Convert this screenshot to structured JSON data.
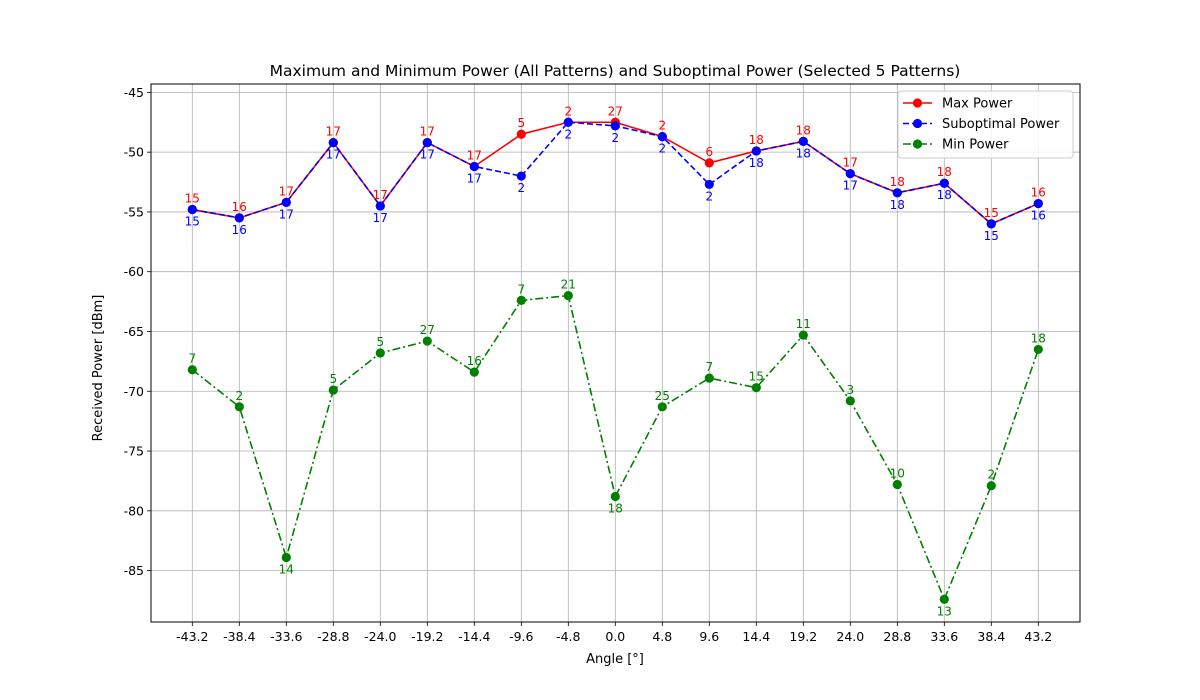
{
  "chart_data": {
    "type": "line",
    "title": "Maximum and Minimum Power (All Patterns) and Suboptimal Power (Selected 5 Patterns)",
    "xlabel": "Angle [°]",
    "ylabel": "Received Power [dBm]",
    "categories": [
      "-43.2",
      "-38.4",
      "-33.6",
      "-28.8",
      "-24.0",
      "-19.2",
      "-14.4",
      "-9.6",
      "-4.8",
      "0.0",
      "4.8",
      "9.6",
      "14.4",
      "19.2",
      "24.0",
      "28.8",
      "33.6",
      "38.4",
      "43.2"
    ],
    "yticks": [
      "-45",
      "-50",
      "-55",
      "-60",
      "-65",
      "-70",
      "-75",
      "-80",
      "-85"
    ],
    "ylim": [
      -89.3,
      -44.3
    ],
    "grid": true,
    "legend_position": "top-right",
    "series": [
      {
        "name": "Max Power",
        "color": "#ff0000",
        "line_style": "solid",
        "values": [
          -54.8,
          -55.5,
          -54.2,
          -49.2,
          -54.5,
          -49.2,
          -51.2,
          -48.5,
          -47.5,
          -47.5,
          -48.7,
          -50.9,
          -49.9,
          -49.1,
          -51.8,
          -53.4,
          -52.6,
          -56.0,
          -54.3
        ],
        "labels": [
          "15",
          "16",
          "17",
          "17",
          "17",
          "17",
          "17",
          "5",
          "2",
          "27",
          "2",
          "6",
          "18",
          "18",
          "17",
          "18",
          "18",
          "15",
          "16"
        ],
        "label_position": "above"
      },
      {
        "name": "Suboptimal Power",
        "color": "#0000ff",
        "line_style": "dashed",
        "values": [
          -54.8,
          -55.5,
          -54.2,
          -49.2,
          -54.5,
          -49.2,
          -51.2,
          -52.0,
          -47.5,
          -47.8,
          -48.7,
          -52.7,
          -49.9,
          -49.1,
          -51.8,
          -53.4,
          -52.6,
          -56.0,
          -54.3
        ],
        "labels": [
          "15",
          "16",
          "17",
          "17",
          "17",
          "17",
          "17",
          "2",
          "2",
          "2",
          "2",
          "2",
          "18",
          "18",
          "17",
          "18",
          "18",
          "15",
          "16"
        ],
        "label_position": "below"
      },
      {
        "name": "Min Power",
        "color": "#008000",
        "line_style": "dashdot",
        "values": [
          -68.2,
          -71.3,
          -83.9,
          -69.9,
          -66.8,
          -65.8,
          -68.4,
          -62.4,
          -62.0,
          -78.8,
          -71.3,
          -68.9,
          -69.7,
          -65.3,
          -70.8,
          -77.8,
          -87.4,
          -77.9,
          -66.5
        ],
        "labels": [
          "7",
          "2",
          "14",
          "5",
          "5",
          "27",
          "16",
          "7",
          "21",
          "18",
          "25",
          "7",
          "15",
          "11",
          "3",
          "10",
          "13",
          "2",
          "18"
        ],
        "label_positions": [
          "above",
          "above",
          "below",
          "above",
          "above",
          "above",
          "above",
          "above",
          "above",
          "below",
          "above",
          "above",
          "above",
          "above",
          "above",
          "above",
          "below",
          "above",
          "above"
        ]
      }
    ]
  }
}
